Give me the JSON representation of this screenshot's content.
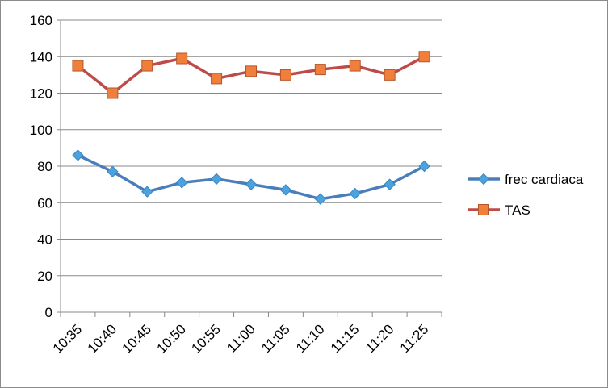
{
  "chart_data": {
    "type": "line",
    "title": "",
    "xlabel": "",
    "ylabel": "",
    "categories": [
      "10:35",
      "10:40",
      "10:45",
      "10:50",
      "10:55",
      "11:00",
      "11:05",
      "11:10",
      "11:15",
      "11:20",
      "11:25"
    ],
    "ylim": [
      0,
      160
    ],
    "yticks": [
      0,
      20,
      40,
      60,
      80,
      100,
      120,
      140,
      160
    ],
    "grid": true,
    "legend_position": "right",
    "series": [
      {
        "name": "frec cardiaca",
        "marker": "diamond",
        "color": "#4a7ebb",
        "marker_color": "#4aa3df",
        "values": [
          86,
          77,
          66,
          71,
          73,
          70,
          67,
          62,
          65,
          70,
          80
        ]
      },
      {
        "name": "TAS",
        "marker": "square",
        "color": "#be4b48",
        "marker_color": "#f07f3c",
        "values": [
          135,
          120,
          135,
          139,
          128,
          132,
          130,
          133,
          135,
          130,
          140
        ]
      }
    ]
  }
}
